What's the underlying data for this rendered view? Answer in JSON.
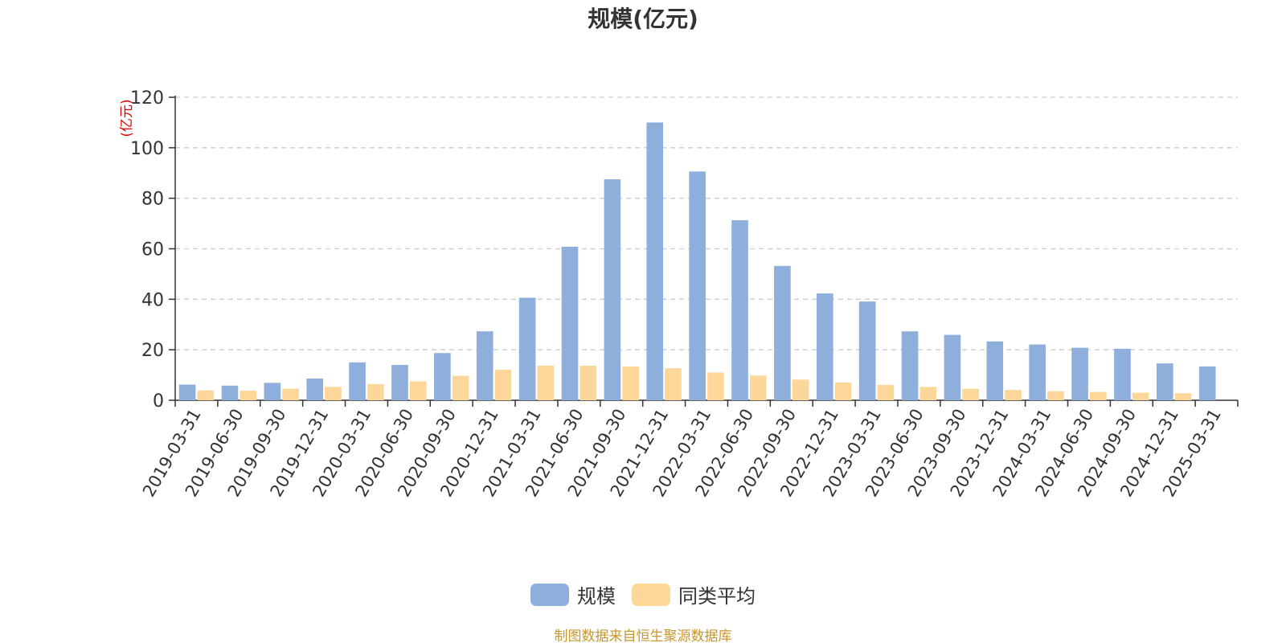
{
  "chart_data": {
    "type": "bar",
    "title": "规模(亿元)",
    "ylabel": "(亿元)",
    "xlabel": "",
    "ylim": [
      0,
      120
    ],
    "yticks": [
      0,
      20,
      40,
      60,
      80,
      100,
      120
    ],
    "grid": true,
    "legend_position": "bottom-center",
    "categories": [
      "2019-03-31",
      "2019-06-30",
      "2019-09-30",
      "2019-12-31",
      "2020-03-31",
      "2020-06-30",
      "2020-09-30",
      "2020-12-31",
      "2021-03-31",
      "2021-06-30",
      "2021-09-30",
      "2021-12-31",
      "2022-03-31",
      "2022-06-30",
      "2022-09-30",
      "2022-12-31",
      "2023-03-31",
      "2023-06-30",
      "2023-09-30",
      "2023-12-31",
      "2024-03-31",
      "2024-06-30",
      "2024-09-30",
      "2024-12-31",
      "2025-03-31"
    ],
    "series": [
      {
        "name": "规模",
        "color": "#8eaedb",
        "values": [
          6.2,
          5.8,
          6.9,
          8.6,
          15.0,
          14.0,
          18.7,
          27.3,
          40.6,
          60.8,
          87.5,
          110.0,
          90.6,
          71.3,
          53.2,
          42.3,
          39.1,
          27.3,
          25.9,
          23.3,
          22.1,
          20.8,
          20.4,
          14.6,
          13.4
        ]
      },
      {
        "name": "同类平均",
        "color": "#fdd79a",
        "values": [
          3.9,
          3.8,
          4.6,
          5.3,
          6.4,
          7.5,
          9.7,
          12.1,
          13.7,
          13.7,
          13.4,
          12.7,
          11.0,
          9.8,
          8.2,
          7.0,
          6.1,
          5.3,
          4.6,
          4.1,
          3.6,
          3.3,
          3.0,
          2.8,
          null
        ]
      }
    ]
  },
  "source_note": "制图数据来自恒生聚源数据库",
  "axis_color": "#333333",
  "ylabel_color": "#e00000",
  "grid_color": "#cccccc"
}
